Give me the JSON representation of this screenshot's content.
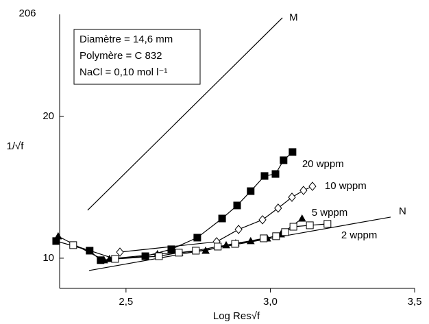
{
  "page_number": "206",
  "chart_data": {
    "type": "scatter",
    "xlabel": "Log Res√f",
    "ylabel": "1/√f",
    "annotations": [
      "Diamètre = 14,6 mm",
      "Polymère =  C 832",
      "NaCl = 0,10 mol l⁻¹"
    ],
    "xlim": [
      2.27,
      3.5
    ],
    "ylim": [
      7.87,
      27.2
    ],
    "xticks": [
      {
        "value": 2.5,
        "label": "2,5"
      },
      {
        "value": 3,
        "label": "3,0"
      },
      {
        "value": 3.5,
        "label": "3,5"
      }
    ],
    "yticks": [
      10,
      20
    ],
    "series": [
      {
        "name": "M",
        "color": "#000000",
        "marker": "none",
        "x": [
          2.367,
          3.042
        ],
        "values": [
          13.38,
          26.96
        ]
      },
      {
        "name": "N",
        "color": "#000000",
        "marker": "none",
        "x": [
          2.372,
          3.417
        ],
        "values": [
          9.13,
          12.9
        ]
      },
      {
        "name": "20 wppm",
        "color": "#000000",
        "marker": "square-filled",
        "x": [
          2.258,
          2.374,
          2.412,
          2.567,
          2.657,
          2.747,
          2.833,
          2.885,
          2.932,
          2.98,
          3.018,
          3.046,
          3.077
        ],
        "values": [
          11.21,
          10.53,
          9.86,
          10.14,
          10.63,
          11.45,
          12.8,
          13.72,
          14.73,
          15.8,
          15.94,
          16.91,
          17.49
        ]
      },
      {
        "name": "10 wppm",
        "color": "#000000",
        "marker": "diamond-open",
        "x": [
          2.479,
          2.814,
          2.89,
          2.973,
          3.027,
          3.075,
          3.115,
          3.146
        ],
        "values": [
          10.43,
          11.16,
          12.03,
          12.71,
          13.53,
          14.3,
          14.78,
          15.07
        ]
      },
      {
        "name": "5 wppm",
        "color": "#000000",
        "marker": "triangle-filled",
        "x": [
          2.265,
          2.424,
          2.443,
          2.609,
          2.685,
          2.776,
          2.847,
          2.88,
          2.932,
          2.989,
          3.037,
          3.11
        ],
        "values": [
          11.55,
          9.86,
          9.95,
          10.29,
          10.39,
          10.53,
          10.92,
          11.06,
          11.21,
          11.4,
          11.69,
          12.8
        ]
      },
      {
        "name": "2 wppm",
        "color": "#000000",
        "marker": "square-open",
        "x": [
          2.317,
          2.462,
          2.614,
          2.683,
          2.742,
          2.818,
          2.878,
          2.977,
          3.02,
          3.051,
          3.08,
          3.137,
          3.198
        ],
        "values": [
          10.92,
          9.95,
          10.14,
          10.39,
          10.53,
          10.82,
          11.01,
          11.4,
          11.55,
          11.84,
          12.22,
          12.32,
          12.42
        ]
      }
    ]
  }
}
